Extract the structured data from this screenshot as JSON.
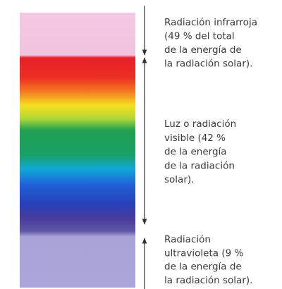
{
  "bands": [
    {
      "lines": [
        "Radiación infrarroja",
        "(49 % del total",
        "de la energía de",
        "la radiación solar)."
      ]
    },
    {
      "lines": [
        "Luz o radiación",
        "visible (42 %",
        "de la energía",
        "de la radiación",
        "solar)."
      ]
    },
    {
      "lines": [
        "Radiación",
        "ultravioleta (9 %",
        "de la energía de",
        "la radiación solar)."
      ]
    }
  ]
}
